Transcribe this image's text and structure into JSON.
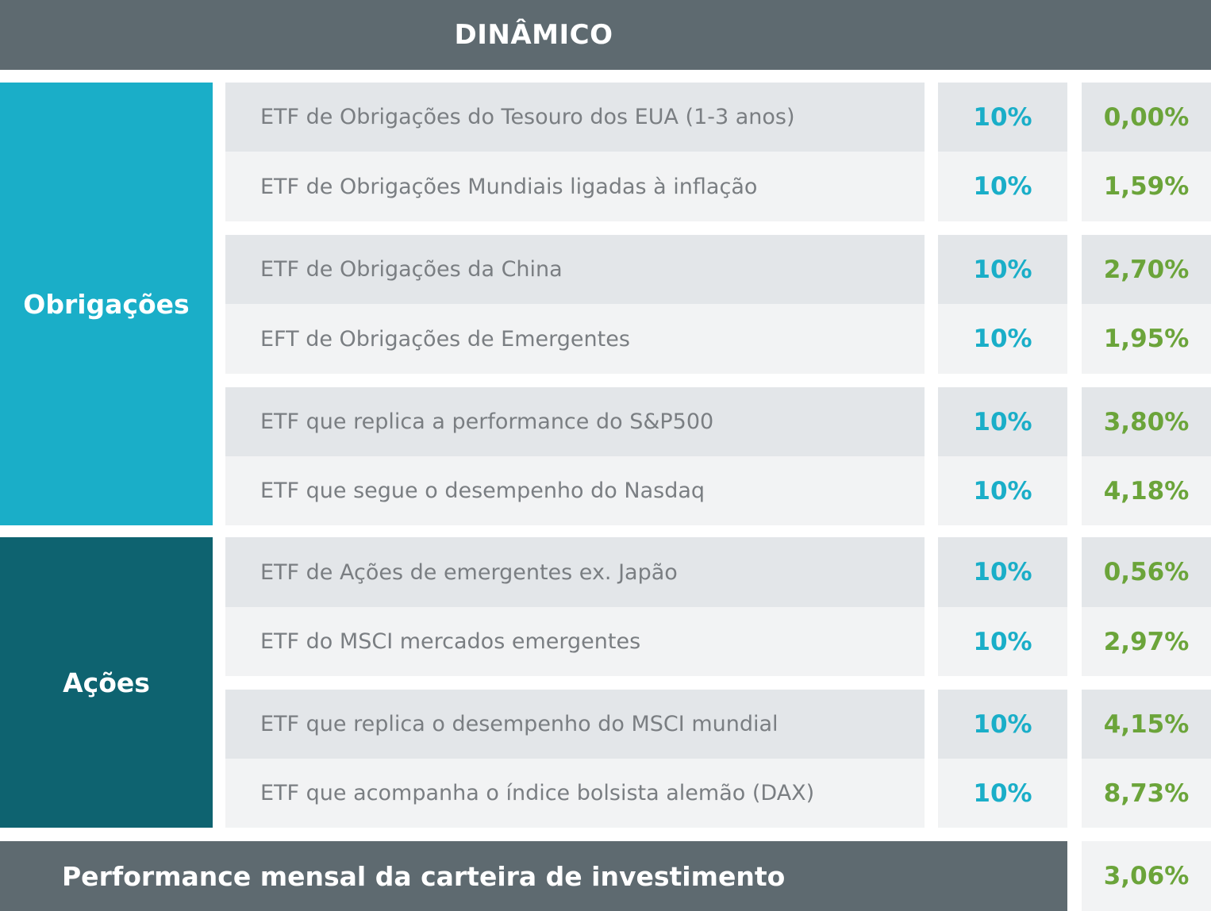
{
  "header": {
    "title": "DINÂMICO"
  },
  "categories": {
    "bonds": "Obrigações",
    "equity": "Ações"
  },
  "rows": [
    {
      "name": "ETF de Obrigações do Tesouro dos EUA (1-3 anos)",
      "allocation": "10%",
      "performance": "0,00%"
    },
    {
      "name": "ETF de Obrigações Mundiais ligadas à inflação",
      "allocation": "10%",
      "performance": "1,59%"
    },
    {
      "name": "ETF de Obrigações da China",
      "allocation": "10%",
      "performance": "2,70%"
    },
    {
      "name": "EFT de Obrigações de Emergentes",
      "allocation": "10%",
      "performance": "1,95%"
    },
    {
      "name": "ETF que replica a performance do S&P500",
      "allocation": "10%",
      "performance": "3,80%"
    },
    {
      "name": "ETF que segue o desempenho do Nasdaq",
      "allocation": "10%",
      "performance": "4,18%"
    },
    {
      "name": "ETF de Ações de emergentes ex. Japão",
      "allocation": "10%",
      "performance": "0,56%"
    },
    {
      "name": "ETF do MSCI  mercados emergentes",
      "allocation": "10%",
      "performance": "2,97%"
    },
    {
      "name": "ETF que replica o desempenho do MSCI mundial",
      "allocation": "10%",
      "performance": "4,15%"
    },
    {
      "name": "ETF que acompanha o índice bolsista alemão (DAX)",
      "allocation": "10%",
      "performance": "8,73%"
    }
  ],
  "footer": {
    "label": "Performance mensal da carteira de investimento",
    "value": "3,06%"
  },
  "colors": {
    "header_bg": "#5e6a70",
    "bonds_bg": "#1aaec8",
    "equity_bg": "#0e6370",
    "allocation_text": "#1aaec8",
    "performance_text": "#6ba43a",
    "name_text": "#7a7e82"
  }
}
